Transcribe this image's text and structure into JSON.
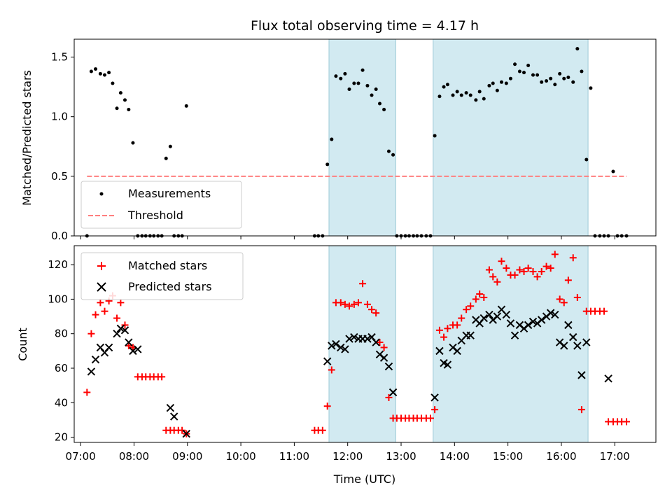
{
  "chart_data": [
    {
      "type": "scatter",
      "title": "Flux total observing time = 4.17 h",
      "xlabel": "",
      "ylabel": "Matched/Predicted stars",
      "xlim": [
        6.88,
        17.77
      ],
      "ylim": [
        0,
        1.65
      ],
      "yticks": [
        0,
        0.5,
        1.0,
        1.5
      ],
      "ytick_labels": [
        "0.0",
        "0.5",
        "1.0",
        "1.5"
      ],
      "legend_location": "lower-left",
      "shaded_spans": [
        [
          11.65,
          12.9
        ],
        [
          13.6,
          16.5
        ]
      ],
      "series": [
        {
          "name": "Measurements",
          "marker": "dot",
          "color": "#000000",
          "x": [
            7.12,
            7.2,
            7.28,
            7.37,
            7.45,
            7.53,
            7.6,
            7.68,
            7.75,
            7.83,
            7.9,
            7.98,
            8.07,
            8.15,
            8.22,
            8.3,
            8.37,
            8.45,
            8.52,
            8.6,
            8.68,
            8.75,
            8.83,
            8.9,
            8.98,
            11.38,
            11.45,
            11.53,
            11.62,
            11.7,
            11.78,
            11.87,
            11.95,
            12.03,
            12.12,
            12.2,
            12.28,
            12.37,
            12.45,
            12.53,
            12.6,
            12.68,
            12.77,
            12.85,
            12.92,
            13.0,
            13.08,
            13.15,
            13.23,
            13.3,
            13.38,
            13.47,
            13.55,
            13.63,
            13.72,
            13.8,
            13.87,
            13.97,
            14.05,
            14.13,
            14.22,
            14.3,
            14.4,
            14.47,
            14.55,
            14.65,
            14.72,
            14.8,
            14.88,
            14.97,
            15.05,
            15.13,
            15.22,
            15.3,
            15.38,
            15.47,
            15.55,
            15.63,
            15.72,
            15.8,
            15.88,
            15.97,
            16.05,
            16.13,
            16.22,
            16.3,
            16.38,
            16.47,
            16.55,
            16.63,
            16.72,
            16.8,
            16.88,
            16.97,
            17.05,
            17.13,
            17.22
          ],
          "y": [
            0,
            1.38,
            1.4,
            1.36,
            1.35,
            1.37,
            1.28,
            1.07,
            1.2,
            1.14,
            1.06,
            0.78,
            0,
            0,
            0,
            0,
            0,
            0,
            0,
            0.65,
            0.75,
            0,
            0,
            0,
            1.09,
            0,
            0,
            0,
            0.6,
            0.81,
            1.34,
            1.32,
            1.36,
            1.23,
            1.28,
            1.28,
            1.39,
            1.26,
            1.18,
            1.23,
            1.11,
            1.06,
            0.71,
            0.68,
            0,
            0,
            0,
            0,
            0,
            0,
            0,
            0,
            0,
            0.84,
            1.17,
            1.25,
            1.27,
            1.18,
            1.21,
            1.18,
            1.2,
            1.18,
            1.14,
            1.21,
            1.15,
            1.26,
            1.28,
            1.22,
            1.29,
            1.28,
            1.32,
            1.44,
            1.38,
            1.37,
            1.43,
            1.35,
            1.35,
            1.29,
            1.3,
            1.32,
            1.27,
            1.36,
            1.32,
            1.33,
            1.29,
            1.57,
            1.38,
            0.64,
            1.24,
            0,
            0,
            0,
            0,
            0.54,
            0,
            0,
            0
          ]
        },
        {
          "name": "Threshold",
          "style": "dashed",
          "color": "#ff7f7f",
          "x": [
            7.12,
            17.22
          ],
          "y": [
            0.5,
            0.5
          ]
        }
      ]
    },
    {
      "type": "scatter",
      "title": "",
      "xlabel": "Time (UTC)",
      "ylabel": "Count",
      "xlim": [
        6.88,
        17.77
      ],
      "ylim": [
        17,
        131
      ],
      "yticks": [
        20,
        40,
        60,
        80,
        100,
        120
      ],
      "ytick_labels": [
        "20",
        "40",
        "60",
        "80",
        "100",
        "120"
      ],
      "xticks": [
        7,
        8,
        9,
        10,
        11,
        12,
        13,
        14,
        15,
        16,
        17
      ],
      "xtick_labels": [
        "07:00",
        "08:00",
        "09:00",
        "10:00",
        "11:00",
        "12:00",
        "13:00",
        "14:00",
        "15:00",
        "16:00",
        "17:00"
      ],
      "legend_location": "upper-left",
      "shaded_spans": [
        [
          11.65,
          12.9
        ],
        [
          13.6,
          16.5
        ]
      ],
      "series": [
        {
          "name": "Matched stars",
          "marker": "plus",
          "color": "#ff0000",
          "x": [
            7.12,
            7.2,
            7.28,
            7.37,
            7.45,
            7.53,
            7.6,
            7.68,
            7.75,
            7.83,
            7.9,
            7.98,
            8.07,
            8.15,
            8.22,
            8.3,
            8.37,
            8.45,
            8.52,
            8.6,
            8.68,
            8.75,
            8.83,
            8.9,
            8.98,
            11.38,
            11.45,
            11.53,
            11.62,
            11.7,
            11.78,
            11.87,
            11.95,
            12.03,
            12.12,
            12.2,
            12.28,
            12.37,
            12.45,
            12.53,
            12.6,
            12.68,
            12.77,
            12.85,
            12.92,
            13.0,
            13.08,
            13.15,
            13.23,
            13.3,
            13.38,
            13.47,
            13.55,
            13.63,
            13.72,
            13.8,
            13.87,
            13.97,
            14.05,
            14.13,
            14.22,
            14.3,
            14.4,
            14.47,
            14.55,
            14.65,
            14.72,
            14.8,
            14.88,
            14.97,
            15.05,
            15.13,
            15.22,
            15.3,
            15.38,
            15.47,
            15.55,
            15.63,
            15.72,
            15.8,
            15.88,
            15.97,
            16.05,
            16.13,
            16.22,
            16.3,
            16.38,
            16.47,
            16.55,
            16.63,
            16.72,
            16.8,
            16.88,
            16.97,
            17.05,
            17.13,
            17.22
          ],
          "y": [
            46,
            80,
            91,
            98,
            93,
            99,
            102,
            89,
            98,
            85,
            73,
            72,
            55,
            55,
            55,
            55,
            55,
            55,
            55,
            24,
            24,
            24,
            24,
            24,
            22,
            24,
            24,
            24,
            38,
            59,
            98,
            98,
            97,
            96,
            97,
            98,
            109,
            97,
            94,
            92,
            75,
            72,
            43,
            31,
            31,
            31,
            31,
            31,
            31,
            31,
            31,
            31,
            31,
            36,
            82,
            78,
            83,
            85,
            85,
            89,
            94,
            96,
            100,
            103,
            101,
            117,
            113,
            110,
            122,
            118,
            114,
            114,
            117,
            116,
            118,
            116,
            113,
            116,
            119,
            118,
            126,
            100,
            98,
            111,
            124,
            101,
            36,
            93,
            93,
            93,
            93,
            93,
            29,
            29,
            29,
            29,
            29
          ]
        },
        {
          "name": "Predicted stars",
          "marker": "x",
          "color": "#000000",
          "x": [
            7.2,
            7.28,
            7.37,
            7.45,
            7.53,
            7.68,
            7.75,
            7.83,
            7.9,
            7.98,
            8.07,
            8.68,
            8.75,
            8.98,
            11.62,
            11.7,
            11.78,
            11.87,
            11.95,
            12.03,
            12.12,
            12.2,
            12.28,
            12.37,
            12.45,
            12.53,
            12.6,
            12.68,
            12.77,
            12.85,
            13.63,
            13.72,
            13.8,
            13.87,
            13.97,
            14.05,
            14.13,
            14.22,
            14.3,
            14.4,
            14.47,
            14.55,
            14.65,
            14.72,
            14.8,
            14.88,
            14.97,
            15.05,
            15.13,
            15.22,
            15.3,
            15.38,
            15.47,
            15.55,
            15.63,
            15.72,
            15.8,
            15.88,
            15.97,
            16.05,
            16.13,
            16.22,
            16.3,
            16.38,
            16.47,
            16.88
          ],
          "y": [
            58,
            65,
            72,
            69,
            72,
            80,
            83,
            82,
            75,
            70,
            71,
            37,
            32,
            22,
            64,
            73,
            74,
            72,
            71,
            77,
            78,
            77,
            77,
            77,
            78,
            75,
            68,
            66,
            61,
            46,
            43,
            70,
            63,
            62,
            72,
            70,
            76,
            79,
            79,
            88,
            86,
            89,
            91,
            88,
            90,
            94,
            91,
            86,
            79,
            85,
            83,
            85,
            87,
            86,
            88,
            90,
            92,
            91,
            75,
            73,
            85,
            78,
            73,
            56,
            75,
            54
          ]
        }
      ]
    }
  ]
}
